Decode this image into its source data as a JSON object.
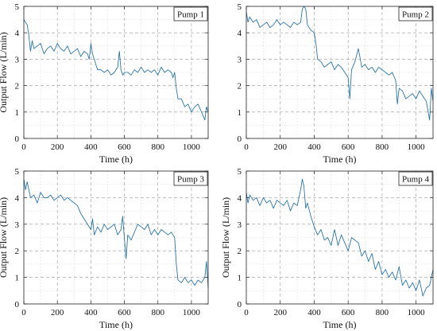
{
  "chart_data": [
    {
      "type": "line",
      "title": "",
      "xlabel": "Time (h)",
      "ylabel": "Output Flow (L/min)",
      "legend": "Pump 1",
      "legend_position": "top-right",
      "grid": true,
      "xlim": [
        0,
        1100
      ],
      "ylim": [
        0,
        5
      ],
      "xticks": [
        0,
        200,
        400,
        600,
        800,
        1000
      ],
      "yticks": [
        0,
        1,
        2,
        3,
        4,
        5
      ],
      "color": "#1f6fa8",
      "series": [
        {
          "name": "Pump 1",
          "x": [
            0,
            10,
            20,
            30,
            40,
            50,
            60,
            80,
            100,
            120,
            140,
            160,
            180,
            200,
            220,
            240,
            260,
            280,
            300,
            320,
            340,
            360,
            380,
            390,
            400,
            410,
            420,
            440,
            460,
            480,
            500,
            520,
            540,
            560,
            570,
            580,
            590,
            600,
            620,
            640,
            660,
            680,
            700,
            720,
            740,
            760,
            780,
            800,
            820,
            840,
            860,
            880,
            890,
            900,
            910,
            920,
            940,
            960,
            980,
            1000,
            1020,
            1040,
            1060,
            1080,
            1090,
            1100
          ],
          "y": [
            4.5,
            4.4,
            4.3,
            3.9,
            3.3,
            3.7,
            3.4,
            3.5,
            3.6,
            3.2,
            3.4,
            3.5,
            3.3,
            3.6,
            3.4,
            3.3,
            3.5,
            3.2,
            3.3,
            3.4,
            3.1,
            3.3,
            3.2,
            3.0,
            3.6,
            3.2,
            3.0,
            2.6,
            2.6,
            2.5,
            2.6,
            2.4,
            2.5,
            2.7,
            3.3,
            2.6,
            2.4,
            2.5,
            2.5,
            2.4,
            2.6,
            2.5,
            2.7,
            2.5,
            2.6,
            2.5,
            2.6,
            2.4,
            2.7,
            2.5,
            2.6,
            2.5,
            2.3,
            2.5,
            1.9,
            1.5,
            1.5,
            1.2,
            1.3,
            1.0,
            1.2,
            1.3,
            1.0,
            0.7,
            1.2,
            1.0
          ]
        }
      ]
    },
    {
      "type": "line",
      "title": "",
      "xlabel": "Time (h)",
      "ylabel": "",
      "legend": "Pump 2",
      "legend_position": "top-right",
      "grid": true,
      "xlim": [
        0,
        1100
      ],
      "ylim": [
        0,
        5
      ],
      "xticks": [
        0,
        200,
        400,
        600,
        800,
        1000
      ],
      "yticks": [
        0,
        1,
        2,
        3,
        4,
        5
      ],
      "color": "#1f6fa8",
      "series": [
        {
          "name": "Pump 2",
          "x": [
            0,
            10,
            20,
            40,
            60,
            80,
            100,
            120,
            140,
            160,
            180,
            200,
            220,
            240,
            260,
            280,
            300,
            320,
            330,
            340,
            350,
            360,
            380,
            400,
            410,
            420,
            440,
            460,
            480,
            500,
            520,
            540,
            560,
            580,
            600,
            610,
            620,
            640,
            660,
            680,
            700,
            720,
            740,
            760,
            780,
            800,
            820,
            840,
            860,
            880,
            890,
            900,
            920,
            940,
            960,
            980,
            1000,
            1020,
            1040,
            1060,
            1080,
            1090,
            1100
          ],
          "y": [
            4.8,
            4.4,
            4.6,
            4.4,
            4.5,
            4.2,
            4.3,
            4.4,
            4.2,
            4.3,
            4.5,
            4.3,
            4.4,
            4.3,
            4.2,
            4.4,
            4.3,
            4.4,
            4.9,
            5.0,
            4.9,
            4.3,
            4.1,
            4.0,
            3.6,
            3.0,
            2.9,
            2.7,
            2.8,
            2.9,
            2.6,
            2.8,
            2.7,
            2.5,
            2.3,
            1.5,
            2.6,
            2.9,
            3.4,
            2.7,
            2.8,
            2.6,
            2.7,
            2.5,
            2.7,
            2.6,
            2.5,
            2.4,
            2.5,
            2.2,
            1.3,
            1.9,
            1.8,
            1.5,
            1.6,
            1.7,
            1.5,
            1.8,
            1.6,
            1.4,
            0.7,
            1.9,
            1.4
          ]
        }
      ]
    },
    {
      "type": "line",
      "title": "",
      "xlabel": "Time (h)",
      "ylabel": "Output Flow (L/min)",
      "legend": "Pump 3",
      "legend_position": "top-right",
      "grid": true,
      "xlim": [
        0,
        1100
      ],
      "ylim": [
        0,
        5
      ],
      "xticks": [
        0,
        200,
        400,
        600,
        800,
        1000
      ],
      "yticks": [
        0,
        1,
        2,
        3,
        4,
        5
      ],
      "color": "#1f6fa8",
      "series": [
        {
          "name": "Pump 3",
          "x": [
            0,
            10,
            20,
            40,
            60,
            80,
            100,
            120,
            140,
            160,
            180,
            200,
            220,
            240,
            260,
            280,
            300,
            320,
            340,
            360,
            380,
            400,
            410,
            420,
            440,
            460,
            480,
            500,
            520,
            540,
            560,
            580,
            590,
            600,
            610,
            620,
            640,
            660,
            680,
            700,
            720,
            740,
            760,
            780,
            800,
            820,
            840,
            860,
            880,
            900,
            910,
            920,
            940,
            960,
            980,
            1000,
            1020,
            1040,
            1060,
            1080,
            1090,
            1100
          ],
          "y": [
            4.7,
            4.3,
            4.6,
            4.0,
            4.1,
            3.8,
            4.2,
            4.0,
            4.0,
            4.1,
            3.9,
            4.0,
            4.1,
            3.9,
            4.0,
            3.9,
            3.8,
            3.7,
            3.4,
            3.2,
            3.0,
            2.8,
            3.2,
            2.6,
            2.9,
            2.7,
            3.0,
            2.8,
            2.9,
            3.0,
            2.6,
            2.8,
            3.3,
            2.5,
            1.7,
            2.6,
            2.4,
            2.7,
            3.0,
            2.9,
            2.8,
            3.0,
            2.6,
            2.8,
            2.6,
            2.8,
            2.7,
            2.6,
            2.7,
            2.5,
            1.5,
            0.9,
            0.8,
            1.0,
            0.8,
            0.9,
            0.7,
            0.9,
            0.8,
            1.0,
            1.6,
            0.6
          ]
        }
      ]
    },
    {
      "type": "line",
      "title": "",
      "xlabel": "Time (h)",
      "ylabel": "Output Flow (L/min)",
      "legend": "Pump 4",
      "legend_position": "top-right",
      "grid": true,
      "xlim": [
        0,
        1100
      ],
      "ylim": [
        0,
        5
      ],
      "xticks": [
        0,
        200,
        400,
        600,
        800,
        1000
      ],
      "yticks": [
        0,
        1,
        2,
        3,
        4,
        5
      ],
      "color": "#1f6fa8",
      "series": [
        {
          "name": "Pump 4",
          "x": [
            0,
            10,
            20,
            40,
            60,
            80,
            100,
            120,
            140,
            160,
            180,
            200,
            220,
            240,
            260,
            280,
            300,
            320,
            330,
            340,
            350,
            360,
            380,
            400,
            420,
            440,
            460,
            480,
            500,
            520,
            540,
            560,
            580,
            600,
            620,
            640,
            660,
            680,
            700,
            720,
            740,
            760,
            780,
            800,
            820,
            840,
            860,
            880,
            900,
            920,
            940,
            960,
            980,
            1000,
            1020,
            1040,
            1060,
            1080,
            1090,
            1100
          ],
          "y": [
            4.2,
            3.8,
            4.1,
            3.9,
            4.0,
            3.7,
            4.0,
            3.8,
            3.9,
            3.6,
            3.9,
            3.8,
            3.7,
            3.9,
            3.5,
            3.8,
            3.7,
            4.3,
            4.7,
            4.4,
            3.6,
            3.8,
            3.3,
            2.9,
            2.6,
            2.8,
            2.4,
            2.5,
            2.2,
            2.8,
            2.2,
            2.6,
            2.3,
            2.0,
            2.5,
            2.4,
            2.3,
            1.8,
            2.0,
            1.6,
            1.9,
            1.3,
            1.6,
            1.1,
            1.3,
            1.0,
            1.2,
            0.9,
            1.4,
            0.7,
            0.9,
            0.6,
            0.8,
            0.5,
            0.9,
            0.3,
            0.6,
            0.7,
            1.0,
            1.3
          ]
        }
      ]
    }
  ]
}
